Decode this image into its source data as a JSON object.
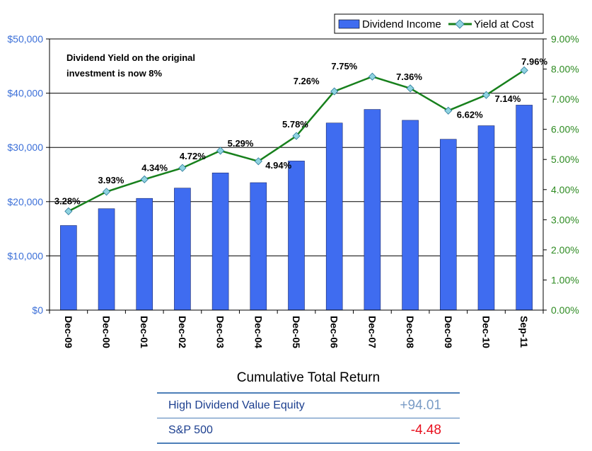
{
  "chart_data": {
    "type": "bar",
    "categories": [
      "Dec-09",
      "Dec-00",
      "Dec-01",
      "Dec-02",
      "Dec-03",
      "Dec-04",
      "Dec-05",
      "Dec-06",
      "Dec-07",
      "Dec-08",
      "Dec-09",
      "Dec-10",
      "Sep-11"
    ],
    "series": [
      {
        "name": "Dividend Income",
        "type": "bar",
        "axis": "left",
        "values": [
          15600,
          18700,
          20600,
          22500,
          25300,
          23500,
          27500,
          34500,
          37000,
          35000,
          31500,
          34000,
          37800
        ]
      },
      {
        "name": "Yield at Cost",
        "type": "line",
        "axis": "right",
        "values": [
          3.28,
          3.93,
          4.34,
          4.72,
          5.29,
          4.94,
          5.78,
          7.26,
          7.75,
          7.36,
          6.62,
          7.14,
          7.96
        ],
        "labels": [
          "3.28%",
          "3.93%",
          "4.34%",
          "4.72%",
          "5.29%",
          "4.94%",
          "5.78%",
          "7.26%",
          "7.75%",
          "7.36%",
          "6.62%",
          "7.14%",
          "7.96%"
        ]
      }
    ],
    "ylim": [
      0,
      50000
    ],
    "y2lim": [
      0,
      9
    ],
    "yticks": [
      "$0",
      "$10,000",
      "$20,000",
      "$30,000",
      "$40,000",
      "$50,000"
    ],
    "y2ticks": [
      "0.00%",
      "1.00%",
      "2.00%",
      "3.00%",
      "4.00%",
      "5.00%",
      "6.00%",
      "7.00%",
      "8.00%",
      "9.00%"
    ],
    "annotation": [
      "Dividend Yield on the original",
      "investment is now  8%"
    ],
    "grid": true,
    "legend_position": "top-right",
    "colors": {
      "bar": "#3f6cf0",
      "line": "#17801c",
      "marker": "#8fd3e0",
      "left_axis": "#3b6fd8",
      "right_axis": "#2e8b22"
    }
  },
  "table": {
    "title": "Cumulative Total Return",
    "rows": [
      {
        "label": "High Dividend Value Equity",
        "value": "+94.01",
        "color": "#7a9cc6"
      },
      {
        "label": "S&P 500",
        "value": "-4.48",
        "color": "#e8101e"
      }
    ]
  }
}
